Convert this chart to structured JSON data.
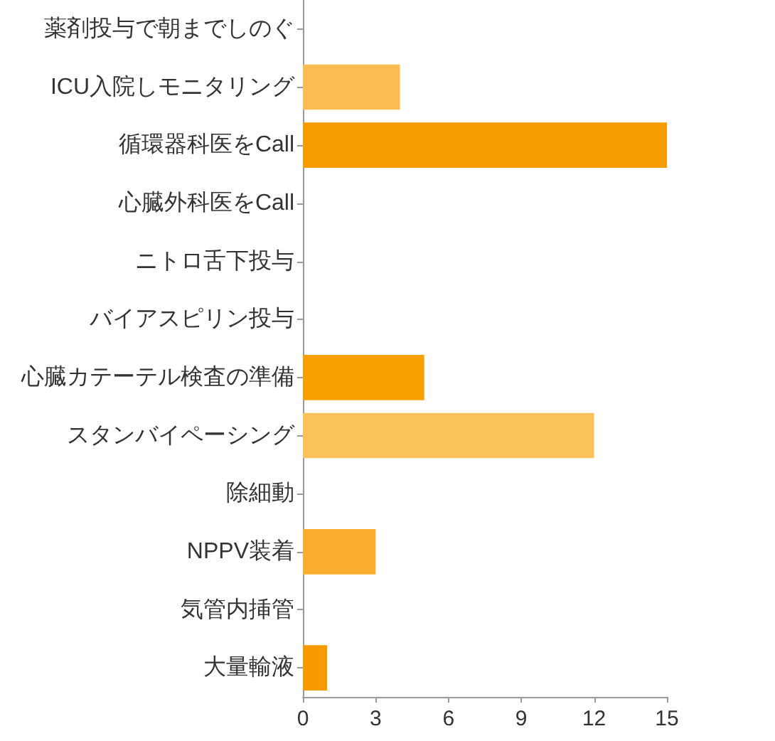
{
  "chart_data": {
    "type": "bar",
    "orientation": "horizontal",
    "categories": [
      "薬剤投与で朝までしのぐ",
      "ICU入院しモニタリング",
      "循環器科医をCall",
      "心臓外科医をCall",
      "ニトロ舌下投与",
      "バイアスピリン投与",
      "心臓カテーテル検査の準備",
      "スタンバイペーシング",
      "除細動",
      "NPPV装着",
      "気管内挿管",
      "大量輸液"
    ],
    "values": [
      0,
      4,
      15,
      0,
      0,
      0,
      5,
      12,
      0,
      3,
      0,
      1
    ],
    "colors": [
      null,
      "#fbbc52",
      "#f79c00",
      null,
      null,
      null,
      "#f7a000",
      "#fbc25c",
      null,
      "#f8ae2c",
      null,
      "#f79a00"
    ],
    "xlim": [
      0,
      15
    ],
    "xticks": [
      0,
      3,
      6,
      9,
      12,
      15
    ],
    "grid": false
  }
}
